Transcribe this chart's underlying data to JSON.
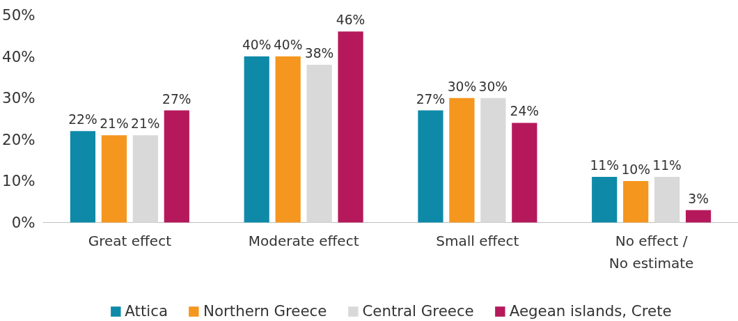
{
  "chart_data": {
    "type": "bar",
    "categories": [
      "Great effect",
      "Moderate effect",
      "Small effect",
      "No effect /\nNo estimate"
    ],
    "series": [
      {
        "name": "Attica",
        "color": "#0e8aa8",
        "values": [
          22,
          40,
          27,
          11
        ],
        "value_labels": [
          "22%",
          "40%",
          "27%",
          "11%"
        ]
      },
      {
        "name": "Northern Greece",
        "color": "#f5961e",
        "values": [
          21,
          40,
          30,
          10
        ],
        "value_labels": [
          "21%",
          "40%",
          "30%",
          "10%"
        ]
      },
      {
        "name": "Central Greece",
        "color": "#d9d9d9",
        "values": [
          21,
          38,
          30,
          11
        ],
        "value_labels": [
          "21%",
          "38%",
          "30%",
          "11%"
        ]
      },
      {
        "name": "Aegean islands, Crete",
        "color": "#b5195b",
        "values": [
          27,
          46,
          24,
          3
        ],
        "value_labels": [
          "27%",
          "46%",
          "24%",
          "3%"
        ]
      }
    ],
    "ylim": [
      0,
      50
    ],
    "yticks": [
      {
        "value": 0,
        "label": "0%"
      },
      {
        "value": 10,
        "label": "10%"
      },
      {
        "value": 20,
        "label": "20%"
      },
      {
        "value": 30,
        "label": "30%"
      },
      {
        "value": 40,
        "label": "40%"
      },
      {
        "value": 50,
        "label": "50%"
      }
    ],
    "grid": false,
    "legend": "bottom"
  }
}
